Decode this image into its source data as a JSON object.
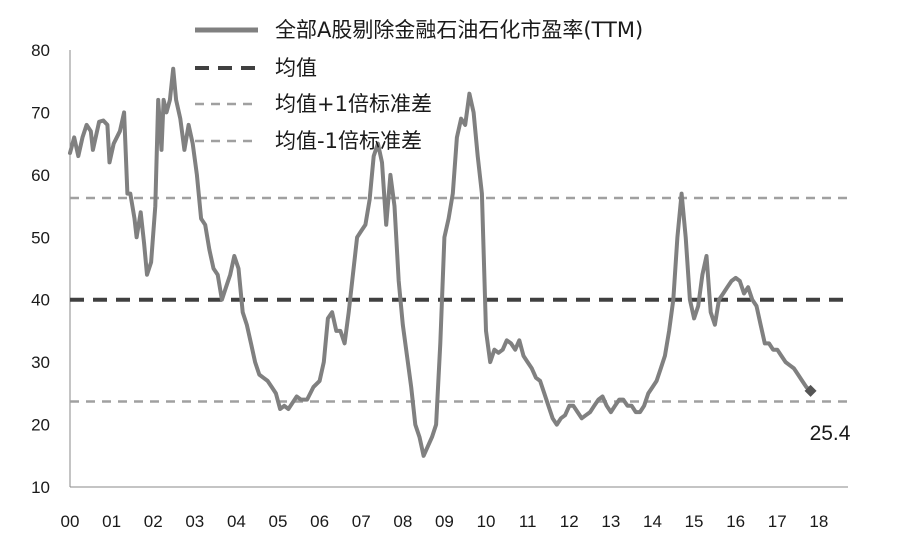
{
  "chart_data": {
    "type": "line",
    "title": "",
    "xlabel": "",
    "ylabel": "",
    "x_ticks": [
      "00",
      "01",
      "02",
      "03",
      "04",
      "05",
      "06",
      "07",
      "08",
      "09",
      "10",
      "11",
      "12",
      "13",
      "14",
      "15",
      "16",
      "17",
      "18"
    ],
    "xlim": [
      0,
      18.7
    ],
    "ylim": [
      10,
      80
    ],
    "y_ticks": [
      10,
      20,
      30,
      40,
      50,
      60,
      70,
      80
    ],
    "grid": false,
    "legend_position": "top",
    "end_value_label": "25.4",
    "series": [
      {
        "name": "全部A股剔除金融石油石化市盈率(TTM)",
        "color": "#808080",
        "style": "solid",
        "points": [
          [
            0.0,
            63.5
          ],
          [
            0.1,
            66
          ],
          [
            0.2,
            63
          ],
          [
            0.3,
            66
          ],
          [
            0.4,
            68
          ],
          [
            0.5,
            67
          ],
          [
            0.55,
            64
          ],
          [
            0.6,
            65.5
          ],
          [
            0.7,
            68.5
          ],
          [
            0.8,
            68.7
          ],
          [
            0.9,
            68
          ],
          [
            0.95,
            62
          ],
          [
            1.05,
            65
          ],
          [
            1.2,
            67
          ],
          [
            1.3,
            70
          ],
          [
            1.38,
            57
          ],
          [
            1.45,
            57
          ],
          [
            1.55,
            53
          ],
          [
            1.6,
            50
          ],
          [
            1.7,
            54
          ],
          [
            1.78,
            49
          ],
          [
            1.85,
            44
          ],
          [
            1.95,
            46
          ],
          [
            2.05,
            55
          ],
          [
            2.12,
            72
          ],
          [
            2.2,
            64
          ],
          [
            2.25,
            72
          ],
          [
            2.32,
            70
          ],
          [
            2.4,
            72
          ],
          [
            2.48,
            77
          ],
          [
            2.55,
            72
          ],
          [
            2.65,
            69
          ],
          [
            2.75,
            64
          ],
          [
            2.85,
            68
          ],
          [
            2.95,
            65
          ],
          [
            3.05,
            60
          ],
          [
            3.15,
            53
          ],
          [
            3.25,
            52
          ],
          [
            3.35,
            48
          ],
          [
            3.45,
            45
          ],
          [
            3.55,
            44
          ],
          [
            3.65,
            40
          ],
          [
            3.75,
            42
          ],
          [
            3.85,
            44
          ],
          [
            3.95,
            47
          ],
          [
            4.05,
            45
          ],
          [
            4.15,
            38
          ],
          [
            4.25,
            36
          ],
          [
            4.35,
            33
          ],
          [
            4.45,
            30
          ],
          [
            4.55,
            28
          ],
          [
            4.65,
            27.5
          ],
          [
            4.75,
            27
          ],
          [
            4.85,
            26
          ],
          [
            4.95,
            25
          ],
          [
            5.05,
            22.5
          ],
          [
            5.15,
            23
          ],
          [
            5.25,
            22.5
          ],
          [
            5.35,
            23.5
          ],
          [
            5.45,
            24.5
          ],
          [
            5.55,
            24
          ],
          [
            5.7,
            24
          ],
          [
            5.85,
            26
          ],
          [
            6.0,
            27
          ],
          [
            6.1,
            30
          ],
          [
            6.2,
            37
          ],
          [
            6.3,
            38
          ],
          [
            6.4,
            35
          ],
          [
            6.5,
            35
          ],
          [
            6.6,
            33
          ],
          [
            6.7,
            38
          ],
          [
            6.8,
            44
          ],
          [
            6.9,
            50
          ],
          [
            7.0,
            51
          ],
          [
            7.1,
            52
          ],
          [
            7.2,
            56
          ],
          [
            7.3,
            63
          ],
          [
            7.4,
            65
          ],
          [
            7.5,
            62
          ],
          [
            7.6,
            52
          ],
          [
            7.7,
            60
          ],
          [
            7.8,
            55
          ],
          [
            7.9,
            43
          ],
          [
            8.0,
            36
          ],
          [
            8.1,
            31
          ],
          [
            8.2,
            26
          ],
          [
            8.3,
            20
          ],
          [
            8.4,
            18
          ],
          [
            8.5,
            15
          ],
          [
            8.6,
            16.5
          ],
          [
            8.7,
            18
          ],
          [
            8.8,
            20
          ],
          [
            8.9,
            33
          ],
          [
            9.0,
            50
          ],
          [
            9.1,
            53
          ],
          [
            9.2,
            57
          ],
          [
            9.3,
            66
          ],
          [
            9.4,
            69
          ],
          [
            9.5,
            68
          ],
          [
            9.6,
            73
          ],
          [
            9.7,
            70
          ],
          [
            9.8,
            63
          ],
          [
            9.9,
            57
          ],
          [
            10.0,
            35
          ],
          [
            10.1,
            30
          ],
          [
            10.2,
            32
          ],
          [
            10.3,
            31.5
          ],
          [
            10.4,
            32
          ],
          [
            10.5,
            33.5
          ],
          [
            10.6,
            33
          ],
          [
            10.7,
            32
          ],
          [
            10.8,
            33.5
          ],
          [
            10.9,
            31
          ],
          [
            11.0,
            30
          ],
          [
            11.1,
            29
          ],
          [
            11.2,
            27.5
          ],
          [
            11.3,
            27
          ],
          [
            11.4,
            25
          ],
          [
            11.5,
            23
          ],
          [
            11.6,
            21
          ],
          [
            11.7,
            20
          ],
          [
            11.8,
            21
          ],
          [
            11.9,
            21.5
          ],
          [
            12.0,
            23
          ],
          [
            12.1,
            23
          ],
          [
            12.2,
            22
          ],
          [
            12.3,
            21
          ],
          [
            12.4,
            21.5
          ],
          [
            12.5,
            22
          ],
          [
            12.6,
            23
          ],
          [
            12.7,
            24
          ],
          [
            12.8,
            24.5
          ],
          [
            12.9,
            23
          ],
          [
            13.0,
            22
          ],
          [
            13.1,
            23
          ],
          [
            13.2,
            24
          ],
          [
            13.3,
            24
          ],
          [
            13.4,
            23
          ],
          [
            13.5,
            23
          ],
          [
            13.6,
            22
          ],
          [
            13.7,
            22
          ],
          [
            13.8,
            23
          ],
          [
            13.9,
            25
          ],
          [
            14.0,
            26
          ],
          [
            14.1,
            27
          ],
          [
            14.2,
            29
          ],
          [
            14.3,
            31
          ],
          [
            14.4,
            35
          ],
          [
            14.5,
            40
          ],
          [
            14.6,
            50
          ],
          [
            14.7,
            57
          ],
          [
            14.8,
            50
          ],
          [
            14.9,
            40
          ],
          [
            15.0,
            37
          ],
          [
            15.1,
            39
          ],
          [
            15.2,
            44
          ],
          [
            15.3,
            47
          ],
          [
            15.4,
            38
          ],
          [
            15.5,
            36
          ],
          [
            15.6,
            40
          ],
          [
            15.7,
            41
          ],
          [
            15.8,
            42
          ],
          [
            15.9,
            43
          ],
          [
            16.0,
            43.5
          ],
          [
            16.1,
            43
          ],
          [
            16.2,
            41
          ],
          [
            16.3,
            42
          ],
          [
            16.4,
            40
          ],
          [
            16.5,
            39
          ],
          [
            16.6,
            36
          ],
          [
            16.7,
            33
          ],
          [
            16.8,
            33
          ],
          [
            16.9,
            32
          ],
          [
            17.0,
            32
          ],
          [
            17.1,
            31
          ],
          [
            17.2,
            30
          ],
          [
            17.3,
            29.5
          ],
          [
            17.4,
            29
          ],
          [
            17.5,
            28
          ],
          [
            17.6,
            27
          ],
          [
            17.7,
            26
          ],
          [
            17.8,
            25.4
          ]
        ]
      },
      {
        "name": "均值",
        "color": "#404040",
        "style": "dashed-bold",
        "value": 40
      },
      {
        "name": "均值+1倍标准差",
        "color": "#a0a0a0",
        "style": "dashed",
        "value": 56.3
      },
      {
        "name": "均值-1倍标准差",
        "color": "#a0a0a0",
        "style": "dashed",
        "value": 23.7
      }
    ]
  }
}
